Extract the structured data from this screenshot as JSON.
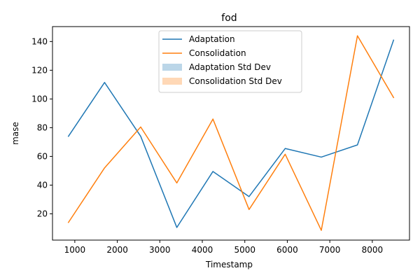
{
  "chart_data": {
    "type": "line",
    "title": "fod",
    "xlabel": "Timestamp",
    "ylabel": "mase",
    "x": [
      850,
      1700,
      2550,
      3400,
      4250,
      5100,
      5950,
      6800,
      7650,
      8500
    ],
    "series": [
      {
        "name": "Adaptation",
        "color": "#1f77b4",
        "values": [
          74,
          111.5,
          74,
          10.5,
          49.5,
          32,
          65.5,
          59.5,
          68,
          141
        ]
      },
      {
        "name": "Consolidation",
        "color": "#ff7f0e",
        "values": [
          14,
          52,
          80.5,
          41.5,
          86,
          23,
          61.5,
          8.5,
          144,
          101
        ]
      }
    ],
    "bands": [
      {
        "name": "Adaptation Std Dev",
        "color": "#1f77b4",
        "opacity": 0.3
      },
      {
        "name": "Consolidation Std Dev",
        "color": "#ff7f0e",
        "opacity": 0.3
      }
    ],
    "xlim": [
      475,
      8875
    ],
    "ylim": [
      1.7,
      150.4
    ],
    "xticks": [
      1000,
      2000,
      3000,
      4000,
      5000,
      6000,
      7000,
      8000
    ],
    "yticks": [
      20,
      40,
      60,
      80,
      100,
      120,
      140
    ],
    "legend_position": "upper center",
    "grid": false
  }
}
